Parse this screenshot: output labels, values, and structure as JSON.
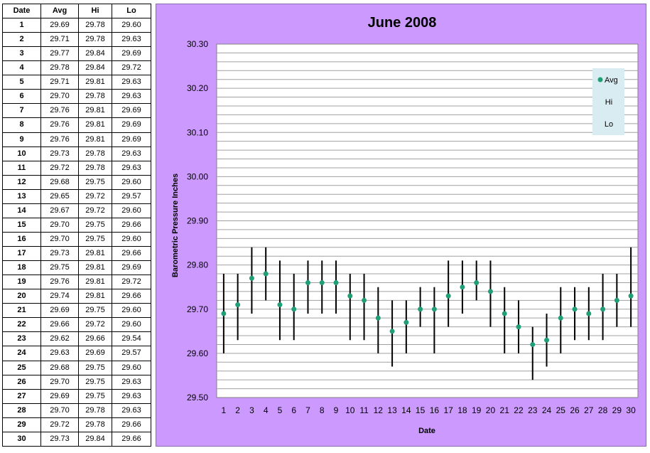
{
  "table": {
    "headers": [
      "Date",
      "Avg",
      "Hi",
      "Lo"
    ],
    "rows": [
      [
        "1",
        "29.69",
        "29.78",
        "29.60"
      ],
      [
        "2",
        "29.71",
        "29.78",
        "29.63"
      ],
      [
        "3",
        "29.77",
        "29.84",
        "29.69"
      ],
      [
        "4",
        "29.78",
        "29.84",
        "29.72"
      ],
      [
        "5",
        "29.71",
        "29.81",
        "29.63"
      ],
      [
        "6",
        "29.70",
        "29.78",
        "29.63"
      ],
      [
        "7",
        "29.76",
        "29.81",
        "29.69"
      ],
      [
        "8",
        "29.76",
        "29.81",
        "29.69"
      ],
      [
        "9",
        "29.76",
        "29.81",
        "29.69"
      ],
      [
        "10",
        "29.73",
        "29.78",
        "29.63"
      ],
      [
        "11",
        "29.72",
        "29.78",
        "29.63"
      ],
      [
        "12",
        "29.68",
        "29.75",
        "29.60"
      ],
      [
        "13",
        "29.65",
        "29.72",
        "29.57"
      ],
      [
        "14",
        "29.67",
        "29.72",
        "29.60"
      ],
      [
        "15",
        "29.70",
        "29.75",
        "29.66"
      ],
      [
        "16",
        "29.70",
        "29.75",
        "29.60"
      ],
      [
        "17",
        "29.73",
        "29.81",
        "29.66"
      ],
      [
        "18",
        "29.75",
        "29.81",
        "29.69"
      ],
      [
        "19",
        "29.76",
        "29.81",
        "29.72"
      ],
      [
        "20",
        "29.74",
        "29.81",
        "29.66"
      ],
      [
        "21",
        "29.69",
        "29.75",
        "29.60"
      ],
      [
        "22",
        "29.66",
        "29.72",
        "29.60"
      ],
      [
        "23",
        "29.62",
        "29.66",
        "29.54"
      ],
      [
        "24",
        "29.63",
        "29.69",
        "29.57"
      ],
      [
        "25",
        "29.68",
        "29.75",
        "29.60"
      ],
      [
        "26",
        "29.70",
        "29.75",
        "29.63"
      ],
      [
        "27",
        "29.69",
        "29.75",
        "29.63"
      ],
      [
        "28",
        "29.70",
        "29.78",
        "29.63"
      ],
      [
        "29",
        "29.72",
        "29.78",
        "29.66"
      ],
      [
        "30",
        "29.73",
        "29.84",
        "29.66"
      ]
    ]
  },
  "chart_data": {
    "type": "scatter",
    "title": "June 2008",
    "xlabel": "Date",
    "ylabel": "Barometric Pressure Inches",
    "ylim": [
      29.5,
      30.3
    ],
    "yticks": [
      "29.50",
      "29.60",
      "29.70",
      "29.80",
      "29.90",
      "30.00",
      "30.10",
      "30.20",
      "30.30"
    ],
    "ygrid_step": 0.02,
    "grid": true,
    "legend_position": "top-right",
    "x": [
      1,
      2,
      3,
      4,
      5,
      6,
      7,
      8,
      9,
      10,
      11,
      12,
      13,
      14,
      15,
      16,
      17,
      18,
      19,
      20,
      21,
      22,
      23,
      24,
      25,
      26,
      27,
      28,
      29,
      30
    ],
    "series": [
      {
        "name": "Avg",
        "values": [
          29.69,
          29.71,
          29.77,
          29.78,
          29.71,
          29.7,
          29.76,
          29.76,
          29.76,
          29.73,
          29.72,
          29.68,
          29.65,
          29.67,
          29.7,
          29.7,
          29.73,
          29.75,
          29.76,
          29.74,
          29.69,
          29.66,
          29.62,
          29.63,
          29.68,
          29.7,
          29.69,
          29.7,
          29.72,
          29.73
        ]
      },
      {
        "name": "Hi",
        "values": [
          29.78,
          29.78,
          29.84,
          29.84,
          29.81,
          29.78,
          29.81,
          29.81,
          29.81,
          29.78,
          29.78,
          29.75,
          29.72,
          29.72,
          29.75,
          29.75,
          29.81,
          29.81,
          29.81,
          29.81,
          29.75,
          29.72,
          29.66,
          29.69,
          29.75,
          29.75,
          29.75,
          29.78,
          29.78,
          29.84
        ]
      },
      {
        "name": "Lo",
        "values": [
          29.6,
          29.63,
          29.69,
          29.72,
          29.63,
          29.63,
          29.69,
          29.69,
          29.69,
          29.63,
          29.63,
          29.6,
          29.57,
          29.6,
          29.66,
          29.6,
          29.66,
          29.69,
          29.72,
          29.66,
          29.6,
          29.6,
          29.54,
          29.57,
          29.6,
          29.63,
          29.63,
          29.63,
          29.66,
          29.66
        ]
      }
    ],
    "colors": {
      "panel_background": "#cc99ff",
      "plot_background": "#ffffff",
      "gridline": "#a0a0a0",
      "marker": "#1f9e77",
      "range_line": "#000000",
      "legend_background": "#d9ecf2"
    }
  }
}
